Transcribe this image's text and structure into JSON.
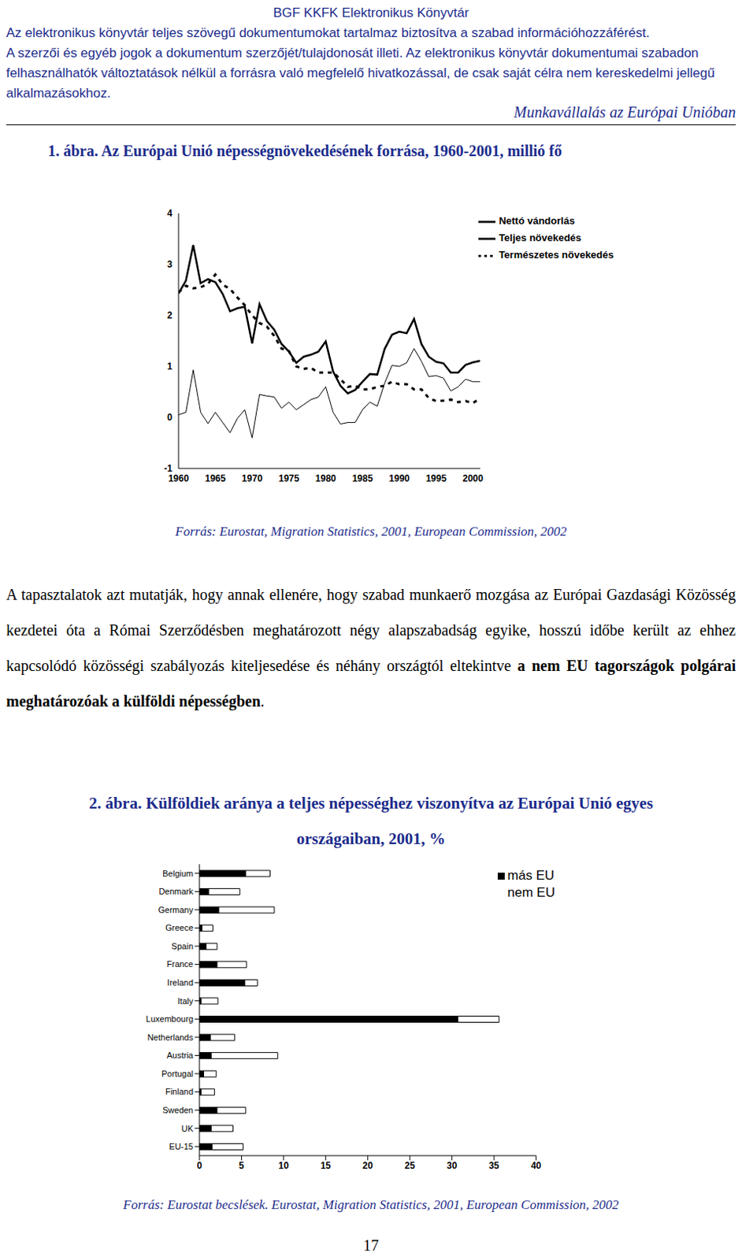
{
  "header": {
    "library": "BGF KKFK Elektronikus Könyvtár",
    "lines": [
      "Az elektronikus könyvtár teljes szövegű dokumentumokat tartalmaz biztosítva a szabad információhozzáférést.",
      "A szerzői és egyéb jogok a dokumentum szerzőjét/tulajdonosát illeti. Az elektronikus könyvtár dokumentumai szabadon felhasználhatók változtatások nélkül a forrásra való megfelelő hivatkozással, de csak saját célra nem kereskedelmi jellegű alkalmazásokhoz."
    ],
    "running_title": "Munkavállalás az Európai Unióban"
  },
  "chart_data": [
    {
      "type": "line",
      "title": "1. ábra. Az Európai Unió népességnövekedésének forrása, 1960-2001, millió fő",
      "source": "Forrás: Eurostat, Migration Statistics, 2001, European Commission, 2002",
      "x": [
        1960,
        1961,
        1962,
        1963,
        1964,
        1965,
        1966,
        1967,
        1968,
        1969,
        1970,
        1971,
        1972,
        1973,
        1974,
        1975,
        1976,
        1977,
        1978,
        1979,
        1980,
        1981,
        1982,
        1983,
        1984,
        1985,
        1986,
        1987,
        1988,
        1989,
        1990,
        1991,
        1992,
        1993,
        1994,
        1995,
        1996,
        1997,
        1998,
        1999,
        2000,
        2001
      ],
      "series": [
        {
          "name": "Természetes növekedés",
          "color": "#000000",
          "line_style": "dashed",
          "values": [
            2.45,
            2.58,
            2.53,
            2.55,
            2.62,
            2.8,
            2.6,
            2.52,
            2.35,
            2.2,
            2.0,
            1.85,
            1.78,
            1.6,
            1.35,
            1.3,
            1.0,
            0.95,
            0.97,
            0.88,
            0.88,
            0.88,
            0.75,
            0.6,
            0.62,
            0.55,
            0.55,
            0.6,
            0.62,
            0.7,
            0.65,
            0.65,
            0.55,
            0.55,
            0.38,
            0.32,
            0.33,
            0.35,
            0.3,
            0.32,
            0.28,
            0.38
          ]
        },
        {
          "name": "Nettó vándorlás",
          "color": "#000000",
          "line_style": "solid",
          "values": [
            0.05,
            0.1,
            0.93,
            0.1,
            -0.12,
            0.1,
            -0.1,
            -0.3,
            -0.02,
            0.15,
            -0.4,
            0.45,
            0.42,
            0.4,
            0.18,
            0.3,
            0.15,
            0.25,
            0.35,
            0.4,
            0.6,
            0.1,
            -0.13,
            -0.1,
            -0.1,
            0.15,
            0.3,
            0.22,
            0.67,
            1.02,
            1.0,
            1.07,
            1.35,
            1.1,
            0.8,
            0.82,
            0.77,
            0.52,
            0.6,
            0.75,
            0.7,
            0.7
          ]
        },
        {
          "name": "Teljes növekedés",
          "color": "#000000",
          "line_style": "solid",
          "values": [
            2.43,
            2.68,
            3.38,
            2.63,
            2.71,
            2.65,
            2.42,
            2.08,
            2.14,
            2.17,
            1.45,
            2.22,
            1.89,
            1.72,
            1.44,
            1.29,
            1.07,
            1.19,
            1.23,
            1.29,
            1.49,
            0.9,
            0.62,
            0.47,
            0.54,
            0.7,
            0.85,
            0.84,
            1.34,
            1.62,
            1.68,
            1.65,
            1.93,
            1.44,
            1.19,
            1.09,
            1.06,
            0.88,
            0.88,
            1.03,
            1.08,
            1.11
          ]
        }
      ],
      "xlim": [
        1960,
        2001
      ],
      "xticks": [
        1960,
        1965,
        1970,
        1975,
        1980,
        1985,
        1990,
        1995,
        2000
      ],
      "ylim": [
        -1,
        4
      ],
      "yticks": [
        -1,
        0,
        1,
        2,
        3,
        4
      ],
      "grid": false,
      "legend": "upper right",
      "marker": "none"
    },
    {
      "type": "bar",
      "title": "2. ábra. Külföldiek aránya a teljes népességhez viszonyítva az Európai Unió egyes országaiban, 2001, %",
      "source": "Forrás: Eurostat becslések. Eurostat, Migration Statistics, 2001, European Commission, 2002",
      "orientation": "horizontal",
      "stacked": true,
      "categories": [
        "Belgium",
        "Denmark",
        "Germany",
        "Greece",
        "Spain",
        "France",
        "Ireland",
        "Italy",
        "Luxembourg",
        "Netherlands",
        "Austria",
        "Portugal",
        "Finland",
        "Sweden",
        "UK",
        "EU-15"
      ],
      "series": [
        {
          "name": "más EU",
          "color": "#000000",
          "values": [
            5.5,
            1.1,
            2.3,
            0.3,
            0.8,
            2.1,
            5.4,
            0.2,
            30.7,
            1.3,
            1.4,
            0.5,
            0.2,
            2.1,
            1.4,
            1.5
          ]
        },
        {
          "name": "nem EU",
          "color": "#ffffff",
          "values": [
            2.9,
            3.7,
            6.6,
            1.3,
            1.3,
            3.5,
            1.5,
            2.0,
            4.9,
            2.9,
            7.9,
            1.5,
            1.6,
            3.4,
            2.6,
            3.7
          ]
        }
      ],
      "xlim": [
        0,
        40
      ],
      "xticks": [
        0,
        5,
        10,
        15,
        20,
        25,
        30,
        35,
        40
      ],
      "grid": false,
      "legend": "upper right"
    }
  ],
  "paragraph": [
    {
      "text": "A tapasztalatok azt mutatják, hogy annak ellenére, hogy szabad munkaerő mozgása az Európai Gazdasági Közösség kezdetei óta a Római Szerződésben meghatározott négy alapszabadság egyike, hosszú időbe került az ehhez kapcsolódó közösségi szabályozás kiteljesedése és néhány országtól eltekintve ",
      "bold": false
    },
    {
      "text": "a nem EU tagországok polgárai meghatározóak a külföldi népességben",
      "bold": true
    },
    {
      "text": ".",
      "bold": false
    }
  ],
  "page_number": "17"
}
